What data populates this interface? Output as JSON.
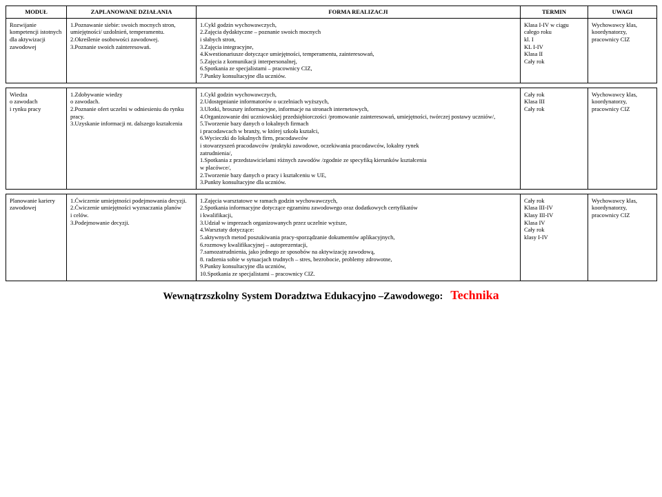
{
  "headers": {
    "modul": "MODUŁ",
    "dzial": "ZAPLANOWANE DZIAŁANIA",
    "forma": "FORMA REALIZACJI",
    "termin": "TERMIN",
    "uwagi": "UWAGI"
  },
  "row1": {
    "modul": "Rozwijanie kompetencji istotnych dla aktywizacji zawodowej",
    "dzial": "1.Poznawanie siebie: swoich mocnych stron, umiejętności/ uzdolnień, temperamentu.\n2.Określenie osobowości zawodowej.\n3.Poznanie swoich zainteresowań.",
    "forma": "1.Cykl godzin wychowawczych,\n2.Zajęcia dydaktyczne – poznanie swoich mocnych\ni słabych stron,\n3.Zajęcia integracyjne,\n4.Kwestionariusze dotyczące umiejętności, temperamentu, zainteresowań,\n5.Zajęcia z komunikacji interpersonalnej,\n6.Spotkania ze specjalistami – pracownicy CIZ,\n7.Punkty konsultacyjne dla uczniów.",
    "termin": "Klasa I-IV w ciągu całego roku\nkl. I\nKL I-IV\nKlasa II\nCały rok",
    "uwagi": "Wychowawcy klas, koordynatorzy, pracownicy CIZ"
  },
  "row2": {
    "modul": "Wiedza\no zawodach\ni rynku pracy",
    "dzial": "1.Zdobywanie wiedzy\no zawodach.\n2.Poznanie ofert uczelni w odniesieniu do rynku pracy.\n3.Uzyskanie informacji nt. dalszego kształcenia",
    "forma": "1.Cykl godzin wychowawczych,\n2.Udostępnianie informatorów o uczelniach wyższych,\n3.Ulotki, broszury informacyjne, informacje na stronach internetowych,\n4.Organizowanie dni uczniowskiej przedsiębiorczości /promowanie zainteresowań, umiejętności, twórczej postawy uczniów/,\n5.Tworzenie bazy danych o lokalnych firmach\ni pracodawcach w branży, w której szkoła kształci,\n6.Wycieczki do lokalnych firm, pracodawców\ni stowarzyszeń pracodawców /praktyki zawodowe, oczekiwania pracodawców, lokalny rynek\nzatrudnienia/,\n1.Spotkania z przedstawicielami różnych zawodów /zgodnie ze specyfiką kierunków kształcenia\nw placówce/,\n2.Tworzenie bazy danych o pracy i kształceniu w UE,\n3.Punkty konsultacyjne dla uczniów.",
    "termin": "Cały rok\nKlasa III\nCały rok",
    "uwagi": "Wychowawcy klas, koordynatorzy, pracownicy CIZ"
  },
  "row3": {
    "modul": "Planowanie kariery zawodowej",
    "dzial": "1.Ćwiczenie umiejętności podejmowania decyzji.\n2.Ćwiczenie umiejętności wyznaczania planów\ni celów.\n3.Podejmowanie decyzji.",
    "forma": "1.Zajęcia warsztatowe w ramach godzin wychowawczych,\n2.Spotkania informacyjne dotyczące egzaminu zawodowego oraz dodatkowych certyfikatów\ni kwalifikacji,\n3.Udział w imprezach organizowanych przez uczelnie wyższe,\n4.Warsztaty dotyczące:\n5.aktywnych metod poszukiwania pracy-sporządzanie dokumentów aplikacyjnych,\n6.rozmowy kwalifikacyjnej – autoprezentacji,\n7.samozatrudnienia, jako jednego ze sposobów na aktywizację zawodową,\n8. radzenia sobie w sytuacjach trudnych – stres, bezrobocie, problemy zdrowotne,\n9.Punkty konsultacyjne dla uczniów,\n10.Spotkania ze specjalistami – pracownicy CIZ.",
    "termin": "Cały rok\nKlasa III-IV\nKlasy III-IV\nKlasa IV\nCały rok\nklasy I-IV",
    "uwagi": "Wychowawcy klas, koordynatorzy, pracownicy CIZ"
  },
  "footer": {
    "label": "Wewnątrzszkolny System Doradztwa Edukacyjno –Zawodowego",
    "tech": "Technika"
  }
}
